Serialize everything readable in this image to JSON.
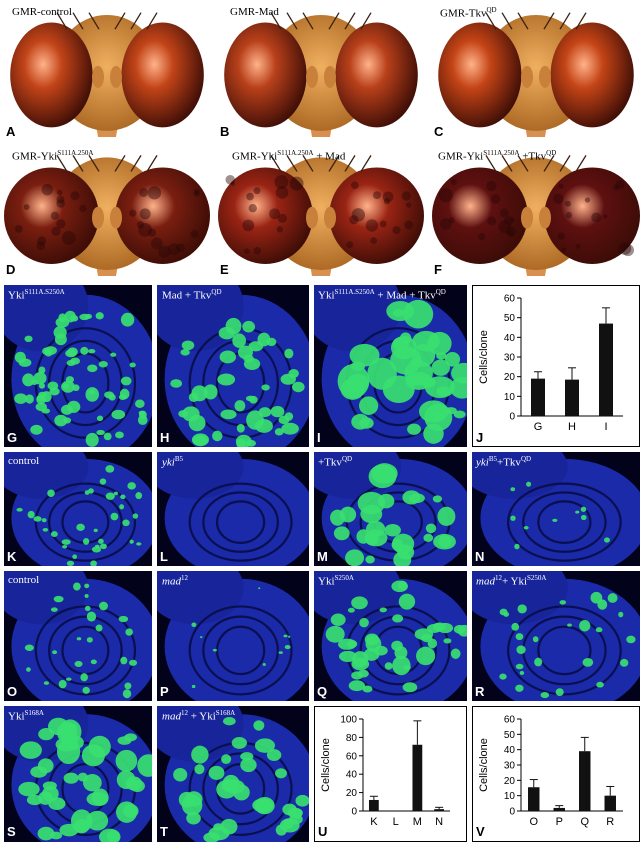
{
  "flies": [
    {
      "letter": "A",
      "genotype": "GMR-control",
      "eye_color": "#c24418",
      "eye_shape": "round"
    },
    {
      "letter": "B",
      "genotype": "GMR-Mad",
      "eye_color": "#b8401a",
      "eye_shape": "round"
    },
    {
      "letter": "C",
      "genotype": "GMR-Tkv",
      "sup": "QD",
      "eye_color": "#c44416",
      "eye_shape": "round"
    },
    {
      "letter": "D",
      "genotype": "GMR-Yki",
      "sup": "S111A.250A",
      "eye_color": "#7a1e10",
      "eye_shape": "rough"
    },
    {
      "letter": "E",
      "genotype": "GMR-Yki",
      "sup": "S111A.250A",
      "suffix": " + Mad",
      "eye_color": "#9a2414",
      "eye_shape": "rough"
    },
    {
      "letter": "F",
      "genotype": "GMR-Yki",
      "sup": "S111A.250A",
      "suffix": " +Tkv",
      "sup2": "QD",
      "eye_color": "#5e1010",
      "eye_shape": "rough"
    }
  ],
  "discs": [
    {
      "letter": "G",
      "label": "Yki",
      "sup": "S111A.S250A"
    },
    {
      "letter": "H",
      "label": "Mad + Tkv",
      "sup": "QD"
    },
    {
      "letter": "I",
      "label": "Yki",
      "sup": "S111A.S250A",
      "suffix": " + Mad + Tkv",
      "sup2": "QD"
    },
    {
      "letter": "K",
      "label": "control"
    },
    {
      "letter": "L",
      "label": "yki",
      "sup": "B5",
      "italic": true
    },
    {
      "letter": "M",
      "label": "+Tkv",
      "sup": "QD"
    },
    {
      "letter": "N",
      "label": "yki",
      "sup": "B5",
      "italic": true,
      "suffix": "+Tkv",
      "sup2": "QD"
    },
    {
      "letter": "O",
      "label": "control"
    },
    {
      "letter": "P",
      "label": "mad",
      "sup": "12",
      "italic": true
    },
    {
      "letter": "Q",
      "label": "Yki",
      "sup": "S250A"
    },
    {
      "letter": "R",
      "label": "mad",
      "sup": "12",
      "italic": true,
      "suffix": "+ Yki",
      "sup2": "S250A"
    },
    {
      "letter": "S",
      "label": "Yki",
      "sup": "S168A"
    },
    {
      "letter": "T",
      "label": "mad",
      "sup": "12",
      "italic": true,
      "suffix": " + Yki",
      "sup2": "S168A"
    }
  ],
  "chart_data": [
    {
      "letter": "J",
      "type": "bar",
      "ylabel": "Cells/clone",
      "ylim": [
        0,
        60
      ],
      "yticks": [
        0,
        10,
        20,
        30,
        40,
        50,
        60
      ],
      "categories": [
        "G",
        "H",
        "I"
      ],
      "values": [
        19,
        18.5,
        47
      ],
      "errors": [
        3.5,
        6,
        8
      ]
    },
    {
      "letter": "U",
      "type": "bar",
      "ylabel": "Cells/clone",
      "ylim": [
        0,
        100
      ],
      "yticks": [
        0,
        20,
        40,
        60,
        80,
        100
      ],
      "categories": [
        "K",
        "L",
        "M",
        "N"
      ],
      "values": [
        12,
        0,
        72,
        2
      ],
      "errors": [
        4,
        0,
        26,
        2
      ]
    },
    {
      "letter": "V",
      "type": "bar",
      "ylabel": "Cells/clone",
      "ylim": [
        0,
        60
      ],
      "yticks": [
        0,
        10,
        20,
        30,
        40,
        50,
        60
      ],
      "categories": [
        "O",
        "P",
        "Q",
        "R"
      ],
      "values": [
        15.5,
        2,
        39,
        10
      ],
      "errors": [
        5,
        1.5,
        9,
        6
      ]
    }
  ]
}
